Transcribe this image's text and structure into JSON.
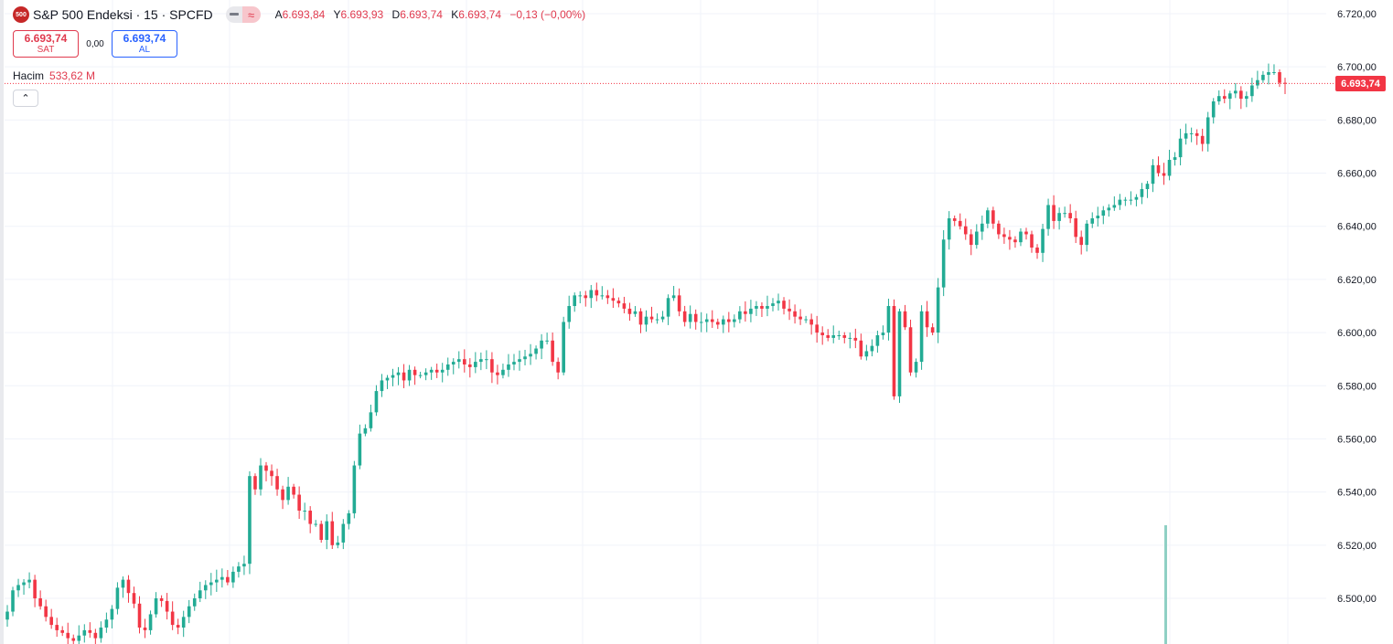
{
  "header": {
    "logo_text": "500",
    "symbol": "S&P 500 Endeksi · 15 · SPCFD",
    "pill_left_icon": "dash-icon",
    "pill_right_icon": "approx-icon",
    "pill_right_glyph": "≈",
    "ohlc": {
      "o_label": "A",
      "o": "6.693,84",
      "h_label": "Y",
      "h": "6.693,93",
      "l_label": "D",
      "l": "6.693,74",
      "c_label": "K",
      "c": "6.693,74",
      "change": "−0,13 (−0,00%)"
    }
  },
  "trade": {
    "sell_price": "6.693,74",
    "sell_label": "SAT",
    "spread": "0,00",
    "buy_price": "6.693,74",
    "buy_label": "AL"
  },
  "volume": {
    "label": "Hacim",
    "value": "533,62 M"
  },
  "collapse_glyph": "⌃",
  "price_tag": "6.693,74",
  "colors": {
    "up": "#22ab94",
    "down": "#f23645",
    "grid": "#f0f3fa",
    "last_price": "#f23645",
    "volume": "#8fd0c4"
  },
  "chart_data": {
    "type": "candlestick",
    "title": "S&P 500 Endeksi · 15 · SPCFD",
    "ylim": [
      6480,
      6725
    ],
    "y_ticks": [
      "6.500,00",
      "6.520,00",
      "6.540,00",
      "6.560,00",
      "6.580,00",
      "6.600,00",
      "6.620,00",
      "6.640,00",
      "6.660,00",
      "6.680,00",
      "6.700,00",
      "6.720,00"
    ],
    "y_tick_values": [
      6500,
      6520,
      6540,
      6560,
      6580,
      6600,
      6620,
      6640,
      6660,
      6680,
      6700,
      6720
    ],
    "grid": true,
    "last_price": 6693.74,
    "volume_last": 533.62,
    "closes": [
      6495,
      6503,
      6505,
      6506,
      6507,
      6500,
      6497,
      6493,
      6490,
      6488,
      6487,
      6485,
      6484,
      6486,
      6488,
      6487,
      6485,
      6489,
      6492,
      6496,
      6504,
      6507,
      6502,
      6498,
      6489,
      6488,
      6494,
      6500,
      6499,
      6495,
      6490,
      6489,
      6493,
      6497,
      6500,
      6503,
      6505,
      6506,
      6507,
      6508,
      6506,
      6510,
      6512,
      6513,
      6546,
      6541,
      6550,
      6548,
      6546,
      6541,
      6537,
      6542,
      6539,
      6533,
      6533,
      6528,
      6528,
      6522,
      6529,
      6520,
      6521,
      6528,
      6532,
      6550,
      6562,
      6564,
      6570,
      6578,
      6582,
      6583,
      6584,
      6585,
      6582,
      6586,
      6584,
      6584,
      6585,
      6586,
      6585,
      6586,
      6588,
      6589,
      6590,
      6588,
      6587,
      6589,
      6590,
      6590,
      6585,
      6584,
      6586,
      6588,
      6589,
      6590,
      6591,
      6592,
      6594,
      6597,
      6597,
      6589,
      6585,
      6604,
      6610,
      6614,
      6614,
      6613,
      6616,
      6614,
      6614,
      6613,
      6612,
      6611,
      6609,
      6607,
      6608,
      6603,
      6606,
      6605,
      6605,
      6606,
      6613,
      6614,
      6608,
      6604,
      6607,
      6604,
      6604,
      6605,
      6604,
      6603,
      6605,
      6604,
      6605,
      6608,
      6607,
      6609,
      6610,
      6609,
      6610,
      6611,
      6612,
      6609,
      6608,
      6606,
      6605,
      6605,
      6603,
      6600,
      6599,
      6598,
      6599,
      6599,
      6598,
      6598,
      6597,
      6591,
      6593,
      6595,
      6599,
      6600,
      6610,
      6576,
      6608,
      6602,
      6585,
      6589,
      6608,
      6602,
      6600,
      6617,
      6635,
      6643,
      6642,
      6640,
      6637,
      6633,
      6638,
      6641,
      6646,
      6641,
      6637,
      6636,
      6635,
      6634,
      6638,
      6637,
      6632,
      6630,
      6639,
      6648,
      6642,
      6645,
      6645,
      6643,
      6636,
      6633,
      6641,
      6643,
      6644,
      6646,
      6647,
      6648,
      6650,
      6650,
      6650,
      6651,
      6654,
      6656,
      6663,
      6660,
      6659,
      6665,
      6666,
      6673,
      6675,
      6675,
      6674,
      6671,
      6681,
      6687,
      6689,
      6688,
      6690,
      6691,
      6688,
      6689,
      6693,
      6695,
      6697,
      6698,
      6698,
      6694,
      6693.74
    ]
  }
}
